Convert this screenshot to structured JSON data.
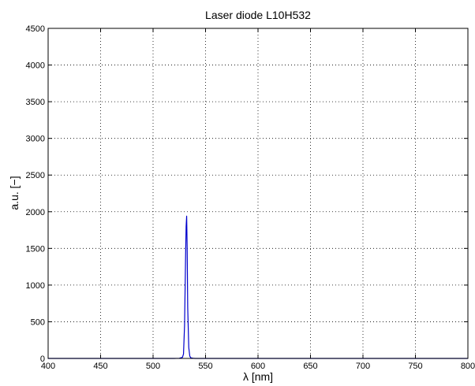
{
  "chart_data": {
    "type": "line",
    "title": "Laser diode L10H532",
    "xlabel": "λ [nm]",
    "ylabel": "a.u. [−]",
    "xlim": [
      400,
      800
    ],
    "ylim": [
      0,
      4500
    ],
    "xticks": [
      400,
      450,
      500,
      550,
      600,
      650,
      700,
      750,
      800
    ],
    "yticks": [
      0,
      500,
      1000,
      1500,
      2000,
      2500,
      3000,
      3500,
      4000,
      4500
    ],
    "grid": true,
    "series": [
      {
        "color": "#0000cc",
        "x": [
          400,
          450,
          500,
          520,
          525,
          528,
          529,
          530,
          531,
          531.5,
          532,
          532.5,
          533,
          534,
          535,
          536,
          538,
          540,
          550,
          600,
          650,
          700,
          750,
          800
        ],
        "y": [
          0,
          0,
          0,
          0,
          2,
          15,
          60,
          450,
          1400,
          1800,
          1940,
          1500,
          700,
          150,
          30,
          8,
          3,
          0,
          0,
          0,
          0,
          0,
          0,
          0
        ]
      }
    ]
  }
}
